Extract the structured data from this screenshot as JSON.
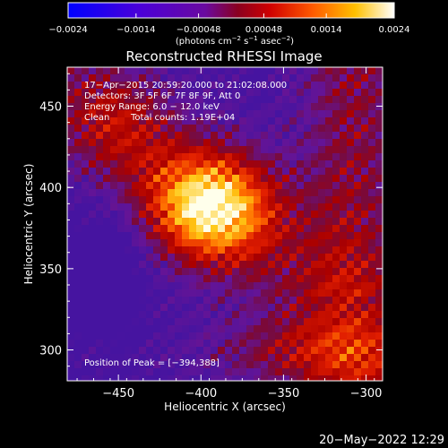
{
  "chart_data": {
    "type": "heatmap",
    "title": "Reconstructed RHESSI Image",
    "xlabel": "Heliocentric X (arcsec)",
    "ylabel": "Heliocentric Y (arcsec)",
    "xlim": [
      -481,
      -290
    ],
    "ylim": [
      281,
      474
    ],
    "x_ticks": [
      -450,
      -400,
      -350,
      -300
    ],
    "x_tick_labels": [
      "−450",
      "−400",
      "−350",
      "−300"
    ],
    "y_ticks": [
      300,
      350,
      400,
      450
    ],
    "y_tick_labels": [
      "300",
      "350",
      "400",
      "450"
    ],
    "peak": [
      -394,
      388
    ],
    "colormap": "red-temperature",
    "colorbar": {
      "range": [
        -0.0024,
        0.0024
      ],
      "ticks": [
        -0.0024,
        -0.0014,
        -0.00048,
        0.00048,
        0.0014,
        0.0024
      ],
      "tick_labels": [
        "−0.0024",
        "−0.0014",
        "−0.00048",
        "0.00048",
        "0.0014",
        "0.0024"
      ],
      "unit_parts": [
        "(photons cm",
        "−2",
        " s",
        "−1",
        " asec",
        "−2",
        ")"
      ]
    },
    "grid": false
  },
  "info": {
    "time_range": "17−Apr−2015 20:59:20.000 to 21:02:08.000",
    "detectors": "Detectors: 3F 5F 6F 7F 8F 9F, Att 0",
    "energy": "Energy Range: 6.0 − 12.0 keV",
    "method": "Clean",
    "total_counts": "Total counts: 1.19E+04",
    "peak_text": "Position of Peak = [−394,388]"
  },
  "footer": {
    "date": "20−May−2022 12:29"
  }
}
